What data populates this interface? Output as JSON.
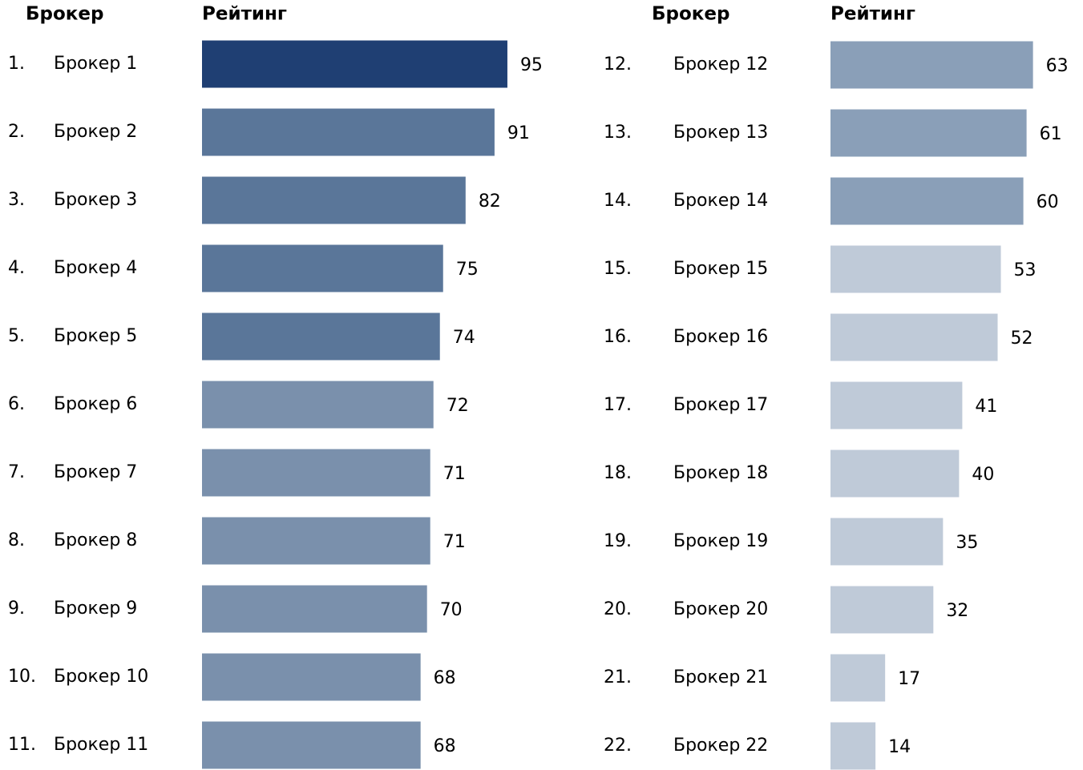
{
  "chart_data": [
    {
      "type": "bar",
      "category_header": "Брокер",
      "value_header": "Рейтинг",
      "ranks": [
        "1.",
        "2.",
        "3.",
        "4.",
        "5.",
        "6.",
        "7.",
        "8.",
        "9.",
        "10.",
        "11."
      ],
      "categories": [
        "Брокер 1",
        "Брокер 2",
        "Брокер 3",
        "Брокер 4",
        "Брокер 5",
        "Брокер 6",
        "Брокер 7",
        "Брокер 8",
        "Брокер 9",
        "Брокер 10",
        "Брокер 11"
      ],
      "values": [
        95,
        91,
        82,
        75,
        74,
        72,
        71,
        71,
        70,
        68,
        68
      ],
      "colors": [
        "#1f3f73",
        "#5a7699",
        "#5a7699",
        "#5a7699",
        "#5a7699",
        "#7a90ac",
        "#7a90ac",
        "#7a90ac",
        "#7a90ac",
        "#7a90ac",
        "#7a90ac"
      ]
    },
    {
      "type": "bar",
      "category_header": "Брокер",
      "value_header": "Рейтинг",
      "ranks": [
        "12.",
        "13.",
        "14.",
        "15.",
        "16.",
        "17.",
        "18.",
        "19.",
        "20.",
        "21.",
        "22."
      ],
      "categories": [
        "Брокер 12",
        "Брокер 13",
        "Брокер 14",
        "Брокер 15",
        "Брокер 16",
        "Брокер 17",
        "Брокер 18",
        "Брокер 19",
        "Брокер 20",
        "Брокер 21",
        "Брокер 22"
      ],
      "values": [
        63,
        61,
        60,
        53,
        52,
        41,
        40,
        35,
        32,
        17,
        14
      ],
      "colors": [
        "#8a9fb8",
        "#8a9fb8",
        "#8a9fb8",
        "#bfcad8",
        "#bfcad8",
        "#bfcad8",
        "#bfcad8",
        "#bfcad8",
        "#bfcad8",
        "#bfcad8",
        "#bfcad8"
      ]
    }
  ]
}
